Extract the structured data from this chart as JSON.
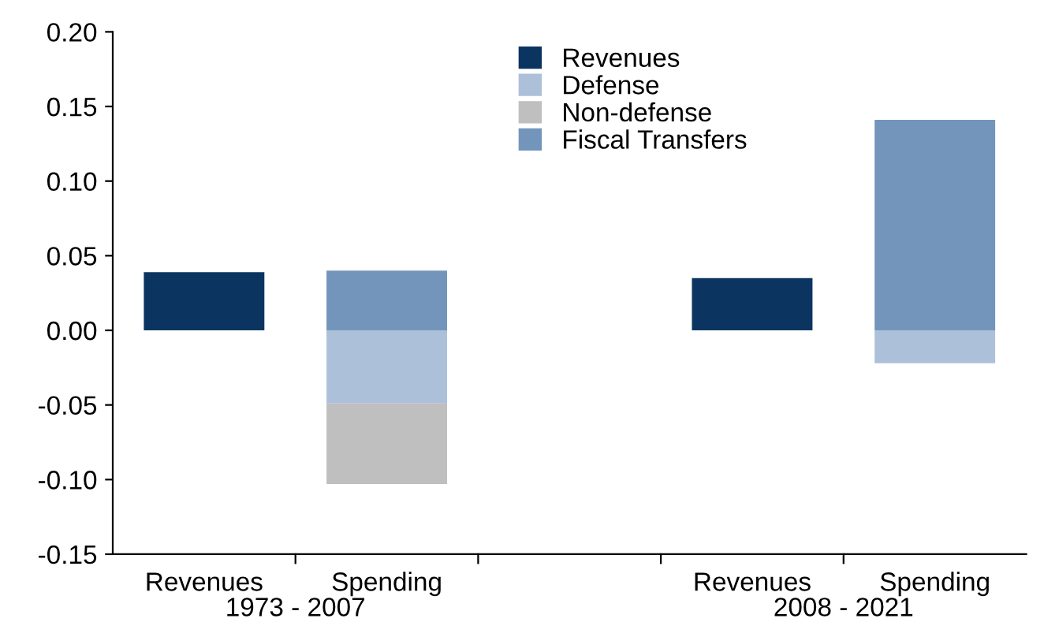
{
  "chart_data": {
    "type": "bar",
    "stacked": true,
    "categories": [
      "Revenues",
      "Spending",
      null,
      "Revenues",
      "Spending"
    ],
    "series": [
      {
        "name": "Revenues",
        "color": "#0b3560",
        "values": [
          0.039,
          null,
          null,
          0.035,
          null
        ]
      },
      {
        "name": "Defense",
        "color": "#adc0da",
        "values": [
          null,
          -0.049,
          null,
          null,
          -0.022
        ]
      },
      {
        "name": "Non-defense",
        "color": "#bfbfbf",
        "values": [
          null,
          -0.054,
          null,
          null,
          null
        ]
      },
      {
        "name": "Fiscal Transfers",
        "color": "#7395bb",
        "values": [
          null,
          0.04,
          null,
          null,
          0.141
        ]
      }
    ],
    "ylim": [
      -0.15,
      0.2
    ],
    "yticks": [
      {
        "value": -0.15,
        "label": "-0.15"
      },
      {
        "value": -0.1,
        "label": "-0.10"
      },
      {
        "value": -0.05,
        "label": "-0.05"
      },
      {
        "value": 0,
        "label": "0.00"
      },
      {
        "value": 0.05,
        "label": "0.05"
      },
      {
        "value": 0.1,
        "label": "0.10"
      },
      {
        "value": 0.15,
        "label": "0.15"
      },
      {
        "value": 0.2,
        "label": "0.20"
      }
    ],
    "annotations": [
      "1973 - 2007",
      "2008 - 2021"
    ],
    "legend": "top",
    "grid": false
  }
}
